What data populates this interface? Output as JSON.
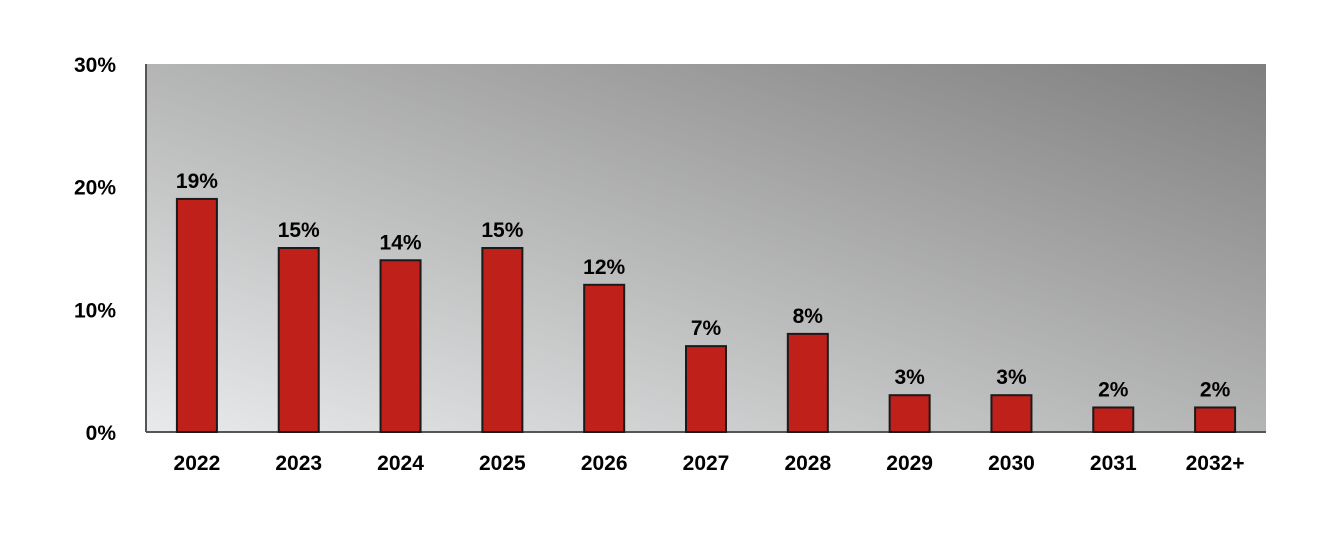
{
  "chart_data": {
    "type": "bar",
    "title": "",
    "xlabel": "",
    "ylabel": "",
    "categories": [
      "2022",
      "2023",
      "2024",
      "2025",
      "2026",
      "2027",
      "2028",
      "2029",
      "2030",
      "2031",
      "2032+"
    ],
    "values": [
      19,
      15,
      14,
      15,
      12,
      7,
      8,
      3,
      3,
      2,
      2
    ],
    "data_labels": [
      "19%",
      "15%",
      "14%",
      "15%",
      "12%",
      "7%",
      "8%",
      "3%",
      "3%",
      "2%",
      "2%"
    ],
    "y_ticks": [
      0,
      10,
      20,
      30
    ],
    "y_tick_labels": [
      "0%",
      "10%",
      "20%",
      "30%"
    ],
    "ylim": [
      0,
      30
    ],
    "grid": false,
    "legend": "none",
    "colors": {
      "bar_fill": "#c0201a",
      "bar_stroke": "#1a1a1a",
      "plot_gradient_light": "#e9eaeb",
      "plot_gradient_dark": "#7f7f7f",
      "axis": "#555555"
    }
  }
}
